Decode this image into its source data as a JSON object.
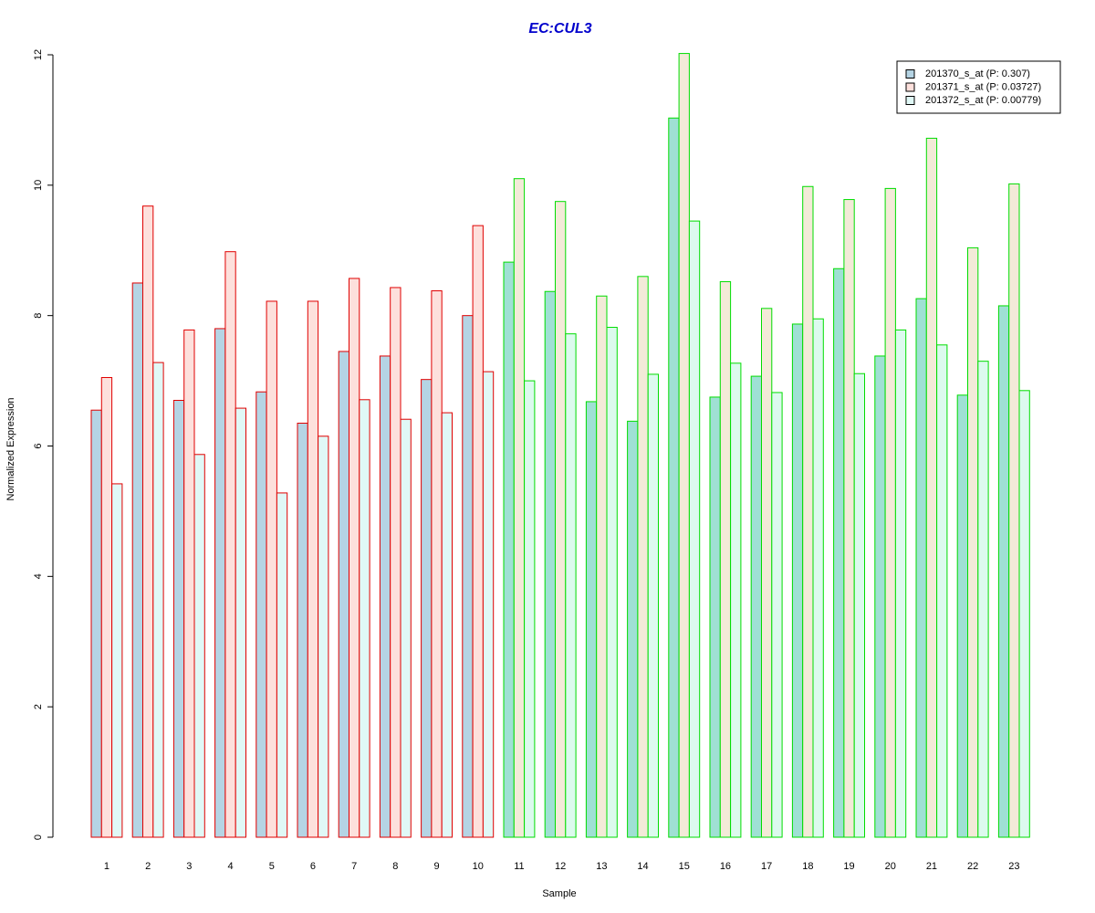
{
  "chart_data": {
    "type": "bar",
    "title": "EC:CUL3",
    "title_color": "#0000cc",
    "xlabel": "Sample",
    "ylabel": "Normalized Expression",
    "ylim": [
      0,
      12
    ],
    "yticks": [
      0,
      2,
      4,
      6,
      8,
      10,
      12
    ],
    "grid": false,
    "legend_position": "top-right",
    "categories": [
      "1",
      "2",
      "3",
      "4",
      "5",
      "6",
      "7",
      "8",
      "9",
      "10",
      "11",
      "12",
      "13",
      "14",
      "15",
      "16",
      "17",
      "18",
      "19",
      "20",
      "21",
      "22",
      "23"
    ],
    "group_border_colors": [
      "#e00000",
      "#e00000",
      "#e00000",
      "#e00000",
      "#e00000",
      "#e00000",
      "#e00000",
      "#e00000",
      "#e00000",
      "#e00000",
      "#00dd00",
      "#00dd00",
      "#00dd00",
      "#00dd00",
      "#00dd00",
      "#00dd00",
      "#00dd00",
      "#00dd00",
      "#00dd00",
      "#00dd00",
      "#00dd00",
      "#00dd00",
      "#00dd00"
    ],
    "series": [
      {
        "name": "201370_s_at (P: 0.307)",
        "fill_colors": [
          "#b5d4e4",
          "#b5d4e4",
          "#b5d4e4",
          "#b5d4e4",
          "#b5d4e4",
          "#b5d4e4",
          "#b5d4e4",
          "#b5d4e4",
          "#b5d4e4",
          "#b5d4e4",
          "#9fe0d4",
          "#9fe0d4",
          "#9fe0d4",
          "#9fe0d4",
          "#9fe0d4",
          "#9fe0d4",
          "#9fe0d4",
          "#9fe0d4",
          "#9fe0d4",
          "#9fe0d4",
          "#9fe0d4",
          "#9fe0d4",
          "#9fe0d4"
        ],
        "legend_color": "#b5d4e4",
        "values": [
          6.55,
          8.5,
          6.7,
          7.8,
          6.83,
          6.35,
          7.45,
          7.38,
          7.02,
          8.0,
          8.82,
          8.37,
          6.68,
          6.38,
          11.03,
          6.75,
          7.07,
          7.87,
          8.72,
          7.38,
          8.26,
          6.78,
          8.15
        ]
      },
      {
        "name": "201371_s_at (P: 0.03727)",
        "fill_colors": [
          "#fde0dc",
          "#fde0dc",
          "#fde0dc",
          "#fde0dc",
          "#fde0dc",
          "#fde0dc",
          "#fde0dc",
          "#fde0dc",
          "#fde0dc",
          "#fde0dc",
          "#f3ead8",
          "#f3ead8",
          "#f3ead8",
          "#f3ead8",
          "#f3ead8",
          "#f3ead8",
          "#f3ead8",
          "#f3ead8",
          "#f3ead8",
          "#f3ead8",
          "#f3ead8",
          "#f3ead8",
          "#f3ead8"
        ],
        "legend_color": "#fde0dc",
        "values": [
          7.05,
          9.68,
          7.78,
          8.98,
          8.22,
          8.22,
          8.57,
          8.43,
          8.38,
          9.38,
          10.1,
          9.75,
          8.3,
          8.6,
          12.02,
          8.52,
          8.11,
          9.98,
          9.78,
          9.95,
          10.72,
          9.04,
          10.02
        ]
      },
      {
        "name": "201372_s_at (P: 0.00779)",
        "fill_colors": [
          "#e0f8f6",
          "#e0f8f6",
          "#e0f8f6",
          "#e0f8f6",
          "#e0f8f6",
          "#e0f8f6",
          "#e0f8f6",
          "#e0f8f6",
          "#e0f8f6",
          "#e0f8f6",
          "#dcfaee",
          "#dcfaee",
          "#dcfaee",
          "#dcfaee",
          "#dcfaee",
          "#dcfaee",
          "#dcfaee",
          "#dcfaee",
          "#dcfaee",
          "#dcfaee",
          "#dcfaee",
          "#dcfaee",
          "#dcfaee"
        ],
        "legend_color": "#e0f8f6",
        "values": [
          5.42,
          7.28,
          5.87,
          6.58,
          5.28,
          6.15,
          6.71,
          6.41,
          6.51,
          7.14,
          7.0,
          7.72,
          7.82,
          7.1,
          9.45,
          7.27,
          6.82,
          7.95,
          7.11,
          7.78,
          7.55,
          7.3,
          6.85
        ]
      }
    ]
  }
}
